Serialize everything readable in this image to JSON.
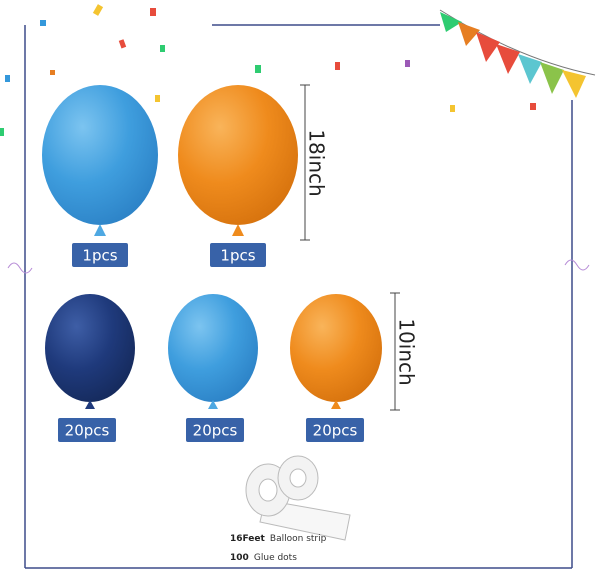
{
  "large_balloons": {
    "size": "18inch",
    "counts": [
      "1pcs",
      "1pcs"
    ]
  },
  "small_balloons": {
    "size": "10inch",
    "counts": [
      "20pcs",
      "20pcs",
      "20pcs"
    ]
  },
  "accessories": [
    {
      "amount": "16Feet",
      "name": "Balloon strip"
    },
    {
      "amount": "100",
      "name": "Glue dots"
    }
  ]
}
